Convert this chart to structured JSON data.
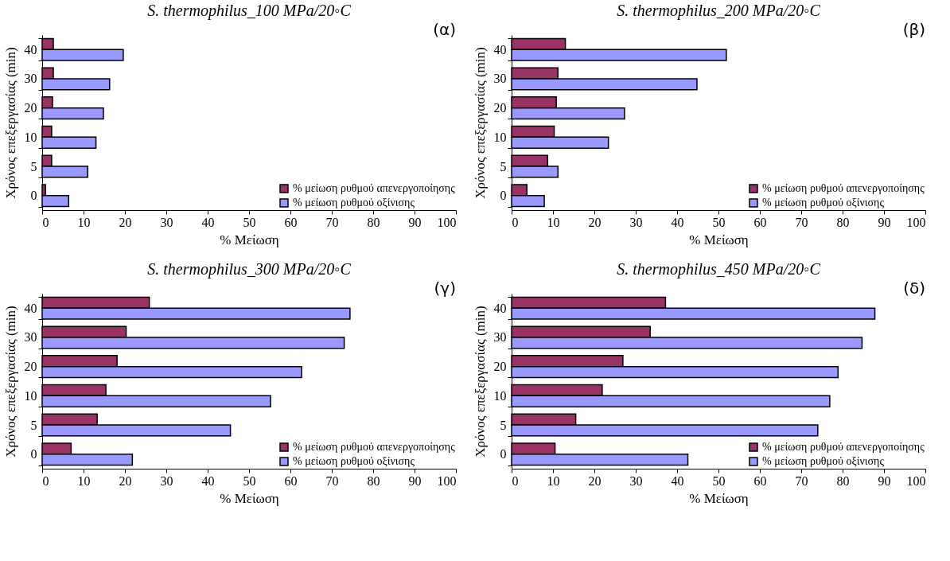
{
  "chart_data": [
    {
      "type": "bar",
      "orientation": "horizontal",
      "title": "S. thermophilus_100 MPa/20◦C",
      "xlabel": "% Μείωση",
      "ylabel": "Χρόνος επεξεργασίας (min)",
      "categories": [
        "40",
        "30",
        "20",
        "10",
        "5",
        "0"
      ],
      "xlim": [
        0,
        100
      ],
      "xticks": [
        0,
        10,
        20,
        30,
        40,
        50,
        60,
        70,
        80,
        90,
        100
      ],
      "grid": false,
      "legend": "bottom right",
      "annotations": [
        "(α)"
      ],
      "series": [
        {
          "name": "% μείωση ρυθμού απενεργοποίησης",
          "color": "#993366",
          "values": [
            2.7,
            2.7,
            2.5,
            2.3,
            2.3,
            0.8
          ]
        },
        {
          "name": "% μείωση ρυθμού οξίνισης",
          "color": "#9999ff",
          "values": [
            19.6,
            16.3,
            14.8,
            13.0,
            11.0,
            6.4
          ]
        }
      ]
    },
    {
      "type": "bar",
      "orientation": "horizontal",
      "title": "S. thermophilus_200 MPa/20◦C",
      "xlabel": "% Μείωση",
      "ylabel": "Χρόνος επεξεργασίας (min)",
      "categories": [
        "40",
        "30",
        "20",
        "10",
        "5",
        "0"
      ],
      "xlim": [
        0,
        100
      ],
      "xticks": [
        0,
        10,
        20,
        30,
        40,
        50,
        60,
        70,
        80,
        90,
        100
      ],
      "grid": false,
      "legend": "bottom right",
      "annotations": [
        "(β)"
      ],
      "series": [
        {
          "name": "% μείωση ρυθμού απενεργοποίησης",
          "color": "#993366",
          "values": [
            13.0,
            11.2,
            10.8,
            10.3,
            8.7,
            3.7
          ]
        },
        {
          "name": "% μείωση ρυθμού οξίνισης",
          "color": "#9999ff",
          "values": [
            51.9,
            44.8,
            27.3,
            23.4,
            11.2,
            7.9
          ]
        }
      ]
    },
    {
      "type": "bar",
      "orientation": "horizontal",
      "title": "S. thermophilus_300 MPa/20◦C",
      "xlabel": "% Μείωση",
      "ylabel": "Χρόνος επεξεργασίας (min)",
      "categories": [
        "40",
        "30",
        "20",
        "10",
        "5",
        "0"
      ],
      "xlim": [
        0,
        100
      ],
      "xticks": [
        0,
        10,
        20,
        30,
        40,
        50,
        60,
        70,
        80,
        90,
        100
      ],
      "grid": false,
      "legend": "bottom right",
      "annotations": [
        "(γ)"
      ],
      "series": [
        {
          "name": "% μείωση ρυθμού απενεργοποίησης",
          "color": "#993366",
          "values": [
            25.9,
            20.3,
            18.1,
            15.4,
            13.3,
            7.0
          ]
        },
        {
          "name": "% μείωση ρυθμού οξίνισης",
          "color": "#9999ff",
          "values": [
            74.4,
            73.0,
            62.7,
            55.2,
            45.5,
            21.8
          ]
        }
      ]
    },
    {
      "type": "bar",
      "orientation": "horizontal",
      "title": "S. thermophilus_450 MPa/20◦C",
      "xlabel": "% Μείωση",
      "ylabel": "Χρόνος επεξεργασίας (min)",
      "categories": [
        "40",
        "30",
        "20",
        "10",
        "5",
        "0"
      ],
      "xlim": [
        0,
        100
      ],
      "xticks": [
        0,
        10,
        20,
        30,
        40,
        50,
        60,
        70,
        80,
        90,
        100
      ],
      "grid": false,
      "legend": "bottom right",
      "annotations": [
        "(δ)"
      ],
      "series": [
        {
          "name": "% μείωση ρυθμού απενεργοποίησης",
          "color": "#993366",
          "values": [
            37.2,
            33.5,
            26.9,
            21.9,
            15.5,
            10.5
          ]
        },
        {
          "name": "% μείωση ρυθμού οξίνισης",
          "color": "#9999ff",
          "values": [
            87.8,
            84.7,
            78.9,
            76.9,
            74.0,
            42.6
          ]
        }
      ]
    }
  ]
}
